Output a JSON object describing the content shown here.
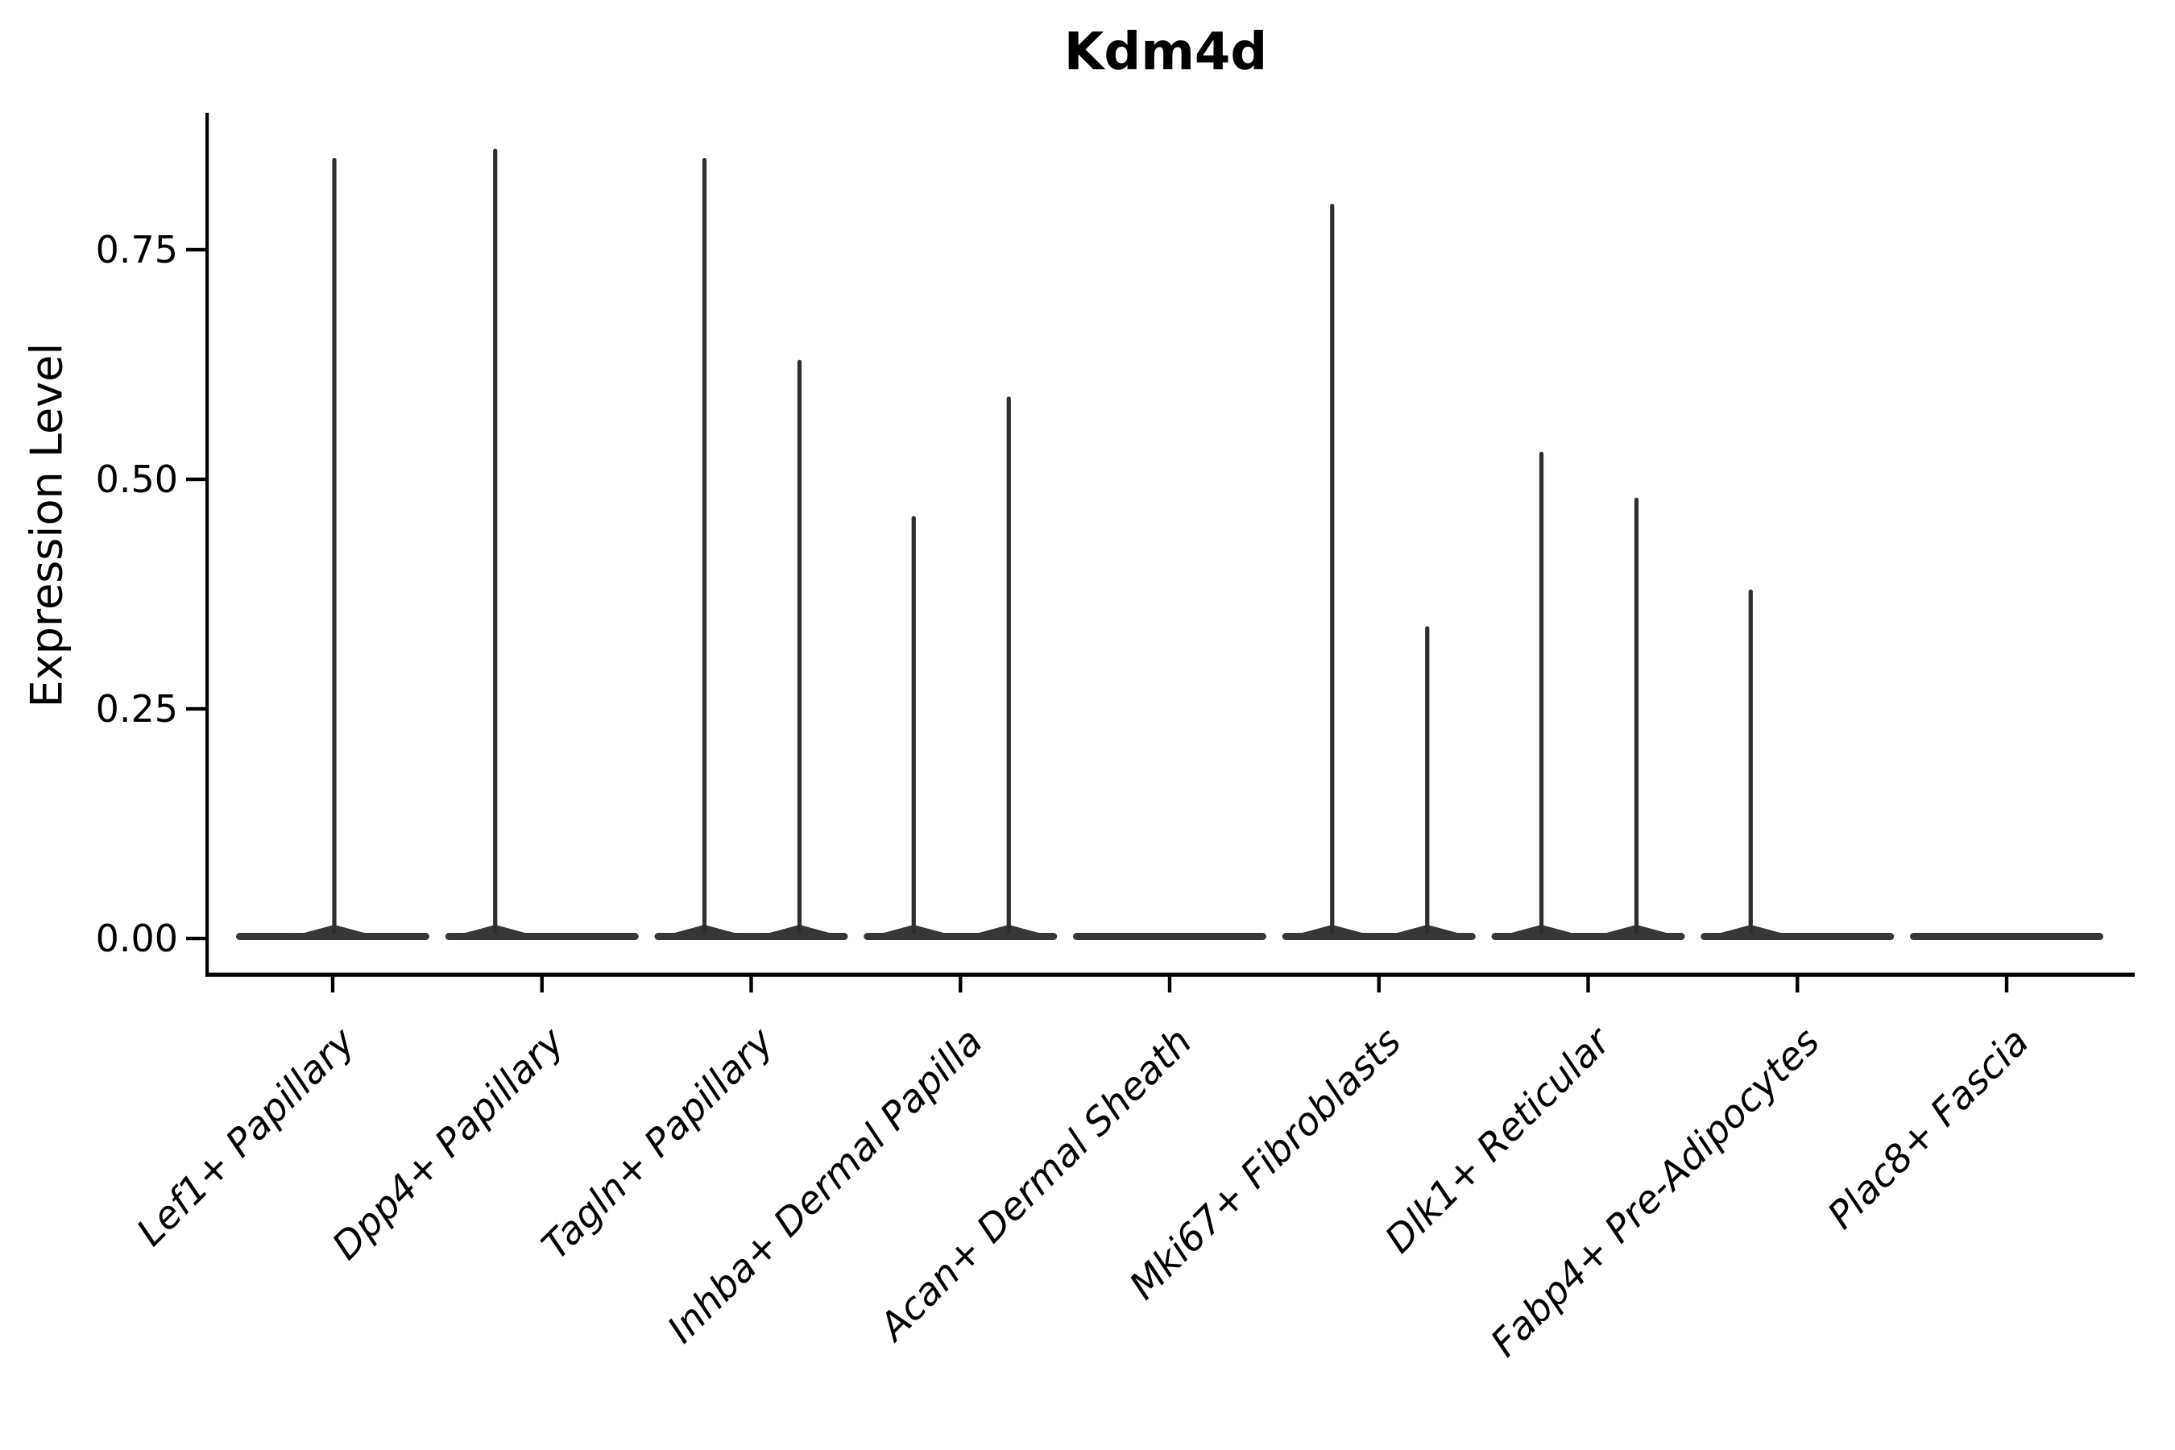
{
  "chart_data": {
    "type": "violin",
    "title": "Kdm4d",
    "ylabel": "Expression Level",
    "xlabel": "",
    "ytick_labels": [
      "0.00",
      "0.25",
      "0.50",
      "0.75"
    ],
    "ytick_values": [
      0.0,
      0.25,
      0.5,
      0.75
    ],
    "ylim": [
      0.0,
      0.9
    ],
    "grid": false,
    "legend": "none",
    "categories": [
      "Lef1+ Papillary",
      "Dpp4+ Papillary",
      "Tagln+ Papillary",
      "Inhba+ Dermal Papilla",
      "Acan+ Dermal Sheath",
      "Mki67+ Fibroblasts",
      "Dlk1+ Reticular",
      "Fabp4+ Pre-Adipocytes",
      "Plac8+ Fascia"
    ],
    "violins": [
      {
        "category": "Lef1+ Papillary",
        "spikes": [
          {
            "pos": "center",
            "max": 0.85
          }
        ]
      },
      {
        "category": "Dpp4+ Papillary",
        "spikes": [
          {
            "pos": "left",
            "max": 0.86
          }
        ]
      },
      {
        "category": "Tagln+ Papillary",
        "spikes": [
          {
            "pos": "left",
            "max": 0.85
          },
          {
            "pos": "right",
            "max": 0.63
          }
        ]
      },
      {
        "category": "Inhba+ Dermal Papilla",
        "spikes": [
          {
            "pos": "left",
            "max": 0.46
          },
          {
            "pos": "right",
            "max": 0.59
          }
        ]
      },
      {
        "category": "Acan+ Dermal Sheath",
        "spikes": []
      },
      {
        "category": "Mki67+ Fibroblasts",
        "spikes": [
          {
            "pos": "left",
            "max": 0.8
          },
          {
            "pos": "right",
            "max": 0.34
          }
        ]
      },
      {
        "category": "Dlk1+ Reticular",
        "spikes": [
          {
            "pos": "left",
            "max": 0.53
          },
          {
            "pos": "right",
            "max": 0.48
          }
        ]
      },
      {
        "category": "Fabp4+ Pre-Adipocytes",
        "spikes": [
          {
            "pos": "left",
            "max": 0.38
          }
        ]
      },
      {
        "category": "Plac8+ Fascia",
        "spikes": []
      }
    ],
    "baseline_value": 0.0,
    "colors": {
      "violin_fill": "#373737",
      "spike": "#2e2e2e",
      "axis": "#000000",
      "text": "#000000",
      "background": "#ffffff"
    }
  }
}
